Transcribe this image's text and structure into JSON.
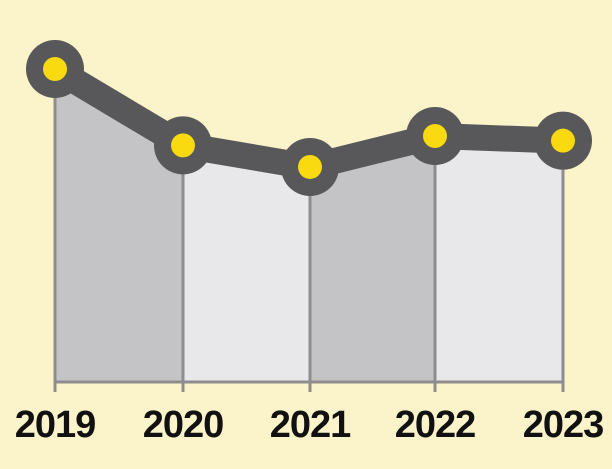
{
  "chart_data": {
    "type": "area",
    "categories": [
      "2019",
      "2020",
      "2021",
      "2022",
      "2023"
    ],
    "series": [
      {
        "values": [
          100,
          75.6,
          68.7,
          78.6,
          77.1
        ]
      }
    ],
    "ylim": [
      0,
      100
    ],
    "grid": false,
    "legend": "none",
    "title": "",
    "xlabel": "",
    "ylabel": ""
  },
  "colors": {
    "background": "#fbf3c9",
    "band_dark": "#c4c4c6",
    "band_light": "#e8e8ea",
    "line": "#58585a",
    "marker_fill": "#f9d90f",
    "marker_ring": "#58585a",
    "axis": "#8d8d8f",
    "label": "#111111"
  }
}
